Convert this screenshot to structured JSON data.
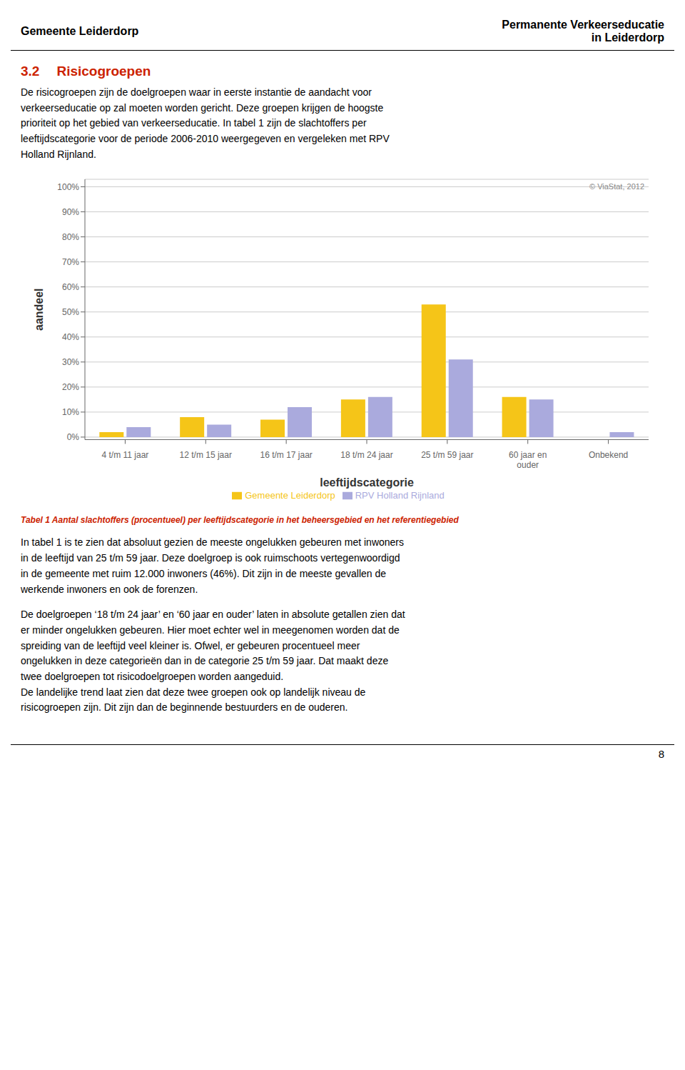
{
  "header_left": "Gemeente Leiderdorp",
  "header_right": [
    "Permanente Verkeerseducatie",
    "in Leiderdorp"
  ],
  "section_number": "3.2",
  "section_title": "Risicogroepen",
  "paragraphs_before": [
    "De risicogroepen zijn de doelgroepen waar in eerste instantie de aandacht voor\nverkeerseducatie op zal moeten worden gericht. Deze groepen krijgen de hoogste\nprioriteit op het gebied van verkeerseducatie. In tabel 1 zijn de slachtoffers per\nleeftijdscategorie voor de periode 2006-2010 weergegeven en vergeleken met RPV\nHolland Rijnland."
  ],
  "caption": "Tabel 1 Aantal slachtoffers (procentueel) per leeftijdscategorie in het beheersgebied en het referentiegebied",
  "paragraphs_after": [
    "In tabel 1 is te zien dat absoluut gezien de meeste ongelukken gebeuren met inwoners\nin de leeftijd van 25 t/m 59 jaar. Deze doelgroep is ook ruimschoots vertegenwoordigd\nin de gemeente met ruim 12.000 inwoners (46%). Dit zijn in de meeste gevallen de\nwerkende inwoners en ook de forenzen.",
    "De doelgroepen ‘18 t/m 24 jaar’ en ‘60 jaar en ouder’ laten in absolute getallen zien dat\ner minder ongelukken gebeuren. Hier moet echter wel in meegenomen worden dat de\nspreiding van de leeftijd veel kleiner is. Ofwel, er gebeuren procentueel meer\nongelukken in deze categorieën dan in de categorie 25 t/m 59 jaar. Dat maakt deze\ntwee doelgroepen tot risicodoelgroepen worden aangeduid.\nDe landelijke trend laat zien dat deze twee groepen ook op landelijk niveau de\nrisicogroepen zijn. Dit zijn dan de beginnende bestuurders en de ouderen."
  ],
  "page_number": "8",
  "chart_data": {
    "type": "bar",
    "categories": [
      "4 t/m 11 jaar",
      "12 t/m 15 jaar",
      "16 t/m 17 jaar",
      "18 t/m 24 jaar",
      "25 t/m 59 jaar",
      "60 jaar en\nouder",
      "Onbekend"
    ],
    "series": [
      {
        "name": "Gemeente Leiderdorp",
        "color": "#F5C518",
        "values": [
          2,
          8,
          7,
          15,
          53,
          16,
          0
        ]
      },
      {
        "name": "RPV Holland Rijnland",
        "color": "#AAAADD",
        "values": [
          4,
          5,
          12,
          16,
          31,
          15,
          2
        ]
      }
    ],
    "x_label": "leeftijdscategorie",
    "y_label": "aandeel",
    "ylim": [
      -1,
      103
    ],
    "yticks": [
      {
        "value": 0,
        "label": "0%"
      },
      {
        "value": 10,
        "label": "10%"
      },
      {
        "value": 20,
        "label": "20%"
      },
      {
        "value": 30,
        "label": "30%"
      },
      {
        "value": 40,
        "label": "40%"
      },
      {
        "value": 50,
        "label": "50%"
      },
      {
        "value": 60,
        "label": "60%"
      },
      {
        "value": 70,
        "label": "70%"
      },
      {
        "value": 80,
        "label": "80%"
      },
      {
        "value": 90,
        "label": "90%"
      },
      {
        "value": 100,
        "label": "100%"
      }
    ],
    "annotations": [
      "© ViaStat, 2012"
    ],
    "grid": true,
    "legend": "bottom"
  }
}
